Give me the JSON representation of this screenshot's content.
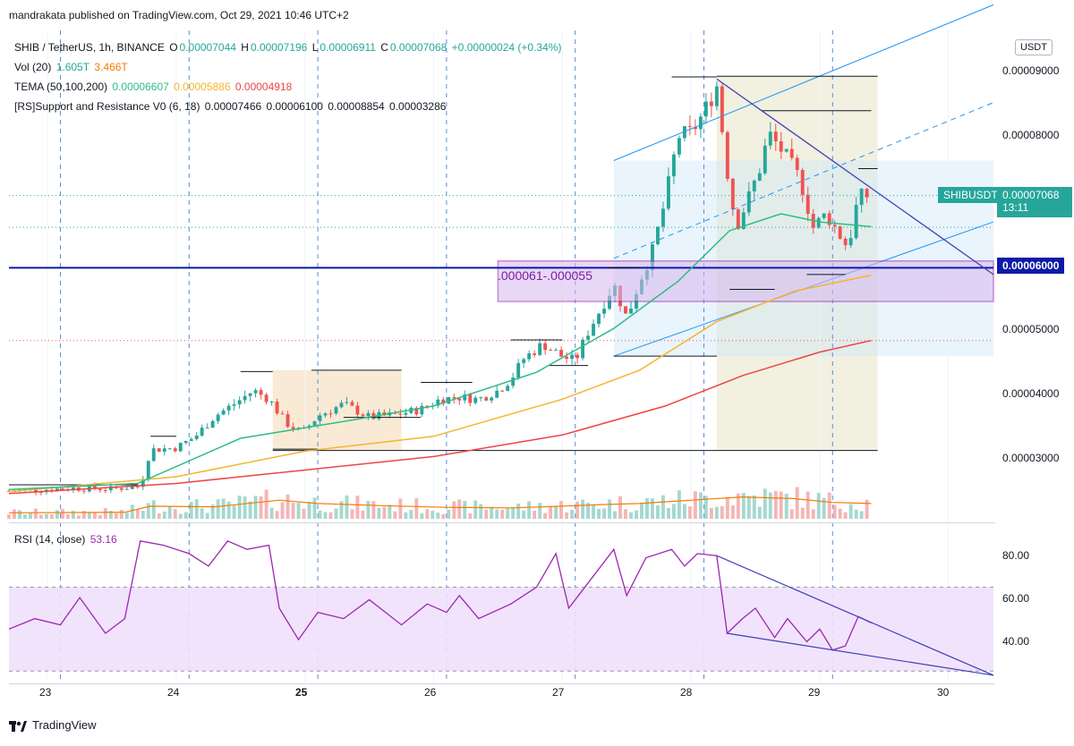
{
  "header": {
    "published": "mandrakata published on TradingView.com, Oct 29, 2021 10:46 UTC+2"
  },
  "legend": {
    "symbol_line": {
      "symbol": "SHIB / TetherUS, 1h, BINANCE",
      "o_label": "O",
      "o": "0.00007044",
      "h_label": "H",
      "h": "0.00007196",
      "l_label": "L",
      "l": "0.00006911",
      "c_label": "C",
      "c": "0.00007068",
      "change": "+0.00000024 (+0.34%)"
    },
    "vol_line": {
      "label": "Vol (20)",
      "v1": "1.605T",
      "v2": "3.466T"
    },
    "tema_line": {
      "label": "TEMA (50,100,200)",
      "v1": "0.00006607",
      "v2": "0.00005886",
      "v3": "0.00004918"
    },
    "sr_line": {
      "label": "[RS]Support and Resistance V0 (6, 18)",
      "v1": "0.00007466",
      "v2": "0.00006100",
      "v3": "0.00008854",
      "v4": "0.00003286"
    },
    "rsi_line": {
      "label": "RSI (14, close)",
      "value": "53.16"
    }
  },
  "price_scale": {
    "currency": "USDT",
    "ticks": [
      "0.00009000",
      "0.00008000",
      "0.00007000",
      "0.00006000",
      "0.00005000",
      "0.00004000",
      "0.00003000"
    ],
    "last_price_symbol": "SHIBUSDT",
    "last_price": "0.00007068",
    "countdown": "13:11",
    "hline_price": "0.00006000"
  },
  "rsi_scale": {
    "ticks": [
      "80.00",
      "60.00",
      "40.00"
    ]
  },
  "time_axis": {
    "ticks": [
      "23",
      "24",
      "25",
      "26",
      "27",
      "28",
      "29",
      "30"
    ]
  },
  "annotations": {
    "zone_label": ".000061-.000055"
  },
  "footer": {
    "brand": "TradingView"
  },
  "colors": {
    "up": "#26a69a",
    "down": "#ef5350",
    "tema50": "#2ebd85",
    "tema100": "#f5b52e",
    "tema200": "#ef4444",
    "hline": "#0d1aa6",
    "rsi": "#9c27b0",
    "zone": "#9c27b0",
    "channel": "#2196f3",
    "trendline": "#3f3fb5"
  },
  "chart_data": {
    "type": "candlestick",
    "symbol": "SHIB / TetherUS",
    "interval": "1h",
    "exchange": "BINANCE",
    "x_range_days": [
      22.7,
      30.35
    ],
    "y_range": [
      2.25e-05,
      9.52e-05
    ],
    "hline": 6e-05,
    "zone": [
      5.5e-05,
      6.1e-05
    ],
    "anchors": [
      [
        22.7,
        2.69e-05
      ],
      [
        23.2,
        2.73e-05
      ],
      [
        23.5,
        2.72e-05
      ],
      [
        23.72,
        2.76e-05
      ],
      [
        23.8,
        3.3e-05
      ],
      [
        24.0,
        3.33e-05
      ],
      [
        24.15,
        3.5e-05
      ],
      [
        24.3,
        3.8e-05
      ],
      [
        24.45,
        3.98e-05
      ],
      [
        24.6,
        4.18e-05
      ],
      [
        24.72,
        4.05e-05
      ],
      [
        24.85,
        3.7e-05
      ],
      [
        24.98,
        3.55e-05
      ],
      [
        25.1,
        3.8e-05
      ],
      [
        25.3,
        3.98e-05
      ],
      [
        25.5,
        3.78e-05
      ],
      [
        25.7,
        3.82e-05
      ],
      [
        25.9,
        3.9e-05
      ],
      [
        26.05,
        4.05e-05
      ],
      [
        26.2,
        4.08e-05
      ],
      [
        26.35,
        4.05e-05
      ],
      [
        26.5,
        4.18e-05
      ],
      [
        26.6,
        4.35e-05
      ],
      [
        26.7,
        4.65e-05
      ],
      [
        26.85,
        4.87e-05
      ],
      [
        27.0,
        4.68e-05
      ],
      [
        27.1,
        4.62e-05
      ],
      [
        27.2,
        5.05e-05
      ],
      [
        27.3,
        5.4e-05
      ],
      [
        27.4,
        5.75e-05
      ],
      [
        27.5,
        5.25e-05
      ],
      [
        27.6,
        5.8e-05
      ],
      [
        27.7,
        6.25e-05
      ],
      [
        27.8,
        7e-05
      ],
      [
        27.9,
        7.95e-05
      ],
      [
        28.0,
        8e-05
      ],
      [
        28.1,
        8.3e-05
      ],
      [
        28.2,
        8.7e-05
      ],
      [
        28.28,
        7.45e-05
      ],
      [
        28.35,
        6.6e-05
      ],
      [
        28.45,
        7.05e-05
      ],
      [
        28.55,
        7.55e-05
      ],
      [
        28.6,
        8e-05
      ],
      [
        28.72,
        7.7e-05
      ],
      [
        28.85,
        7.3e-05
      ],
      [
        28.95,
        6.6e-05
      ],
      [
        29.05,
        6.8e-05
      ],
      [
        29.15,
        6.5e-05
      ],
      [
        29.22,
        6.3e-05
      ],
      [
        29.3,
        7.05e-05
      ],
      [
        29.4,
        7.07e-05
      ]
    ],
    "tema50": [
      [
        22.7,
        2.71e-05
      ],
      [
        23.7,
        2.8e-05
      ],
      [
        24.5,
        3.47e-05
      ],
      [
        25.3,
        3.72e-05
      ],
      [
        26.0,
        3.95e-05
      ],
      [
        26.8,
        4.45e-05
      ],
      [
        27.4,
        5.1e-05
      ],
      [
        27.9,
        5.8e-05
      ],
      [
        28.3,
        6.55e-05
      ],
      [
        28.7,
        6.8e-05
      ],
      [
        29.0,
        6.68e-05
      ],
      [
        29.4,
        6.61e-05
      ]
    ],
    "tema100": [
      [
        22.7,
        2.68e-05
      ],
      [
        24.0,
        2.9e-05
      ],
      [
        25.0,
        3.28e-05
      ],
      [
        26.0,
        3.5e-05
      ],
      [
        27.0,
        4.05e-05
      ],
      [
        27.6,
        4.48e-05
      ],
      [
        28.2,
        5.2e-05
      ],
      [
        28.8,
        5.65e-05
      ],
      [
        29.4,
        5.89e-05
      ]
    ],
    "tema200": [
      [
        22.7,
        2.65e-05
      ],
      [
        24.0,
        2.8e-05
      ],
      [
        25.0,
        3e-05
      ],
      [
        26.0,
        3.2e-05
      ],
      [
        27.0,
        3.52e-05
      ],
      [
        27.8,
        3.95e-05
      ],
      [
        28.4,
        4.4e-05
      ],
      [
        29.0,
        4.75e-05
      ],
      [
        29.4,
        4.92e-05
      ]
    ],
    "support_lines": [
      [
        22.7,
        23.7,
        2.78e-05
      ],
      [
        23.8,
        24.0,
        3.5e-05
      ],
      [
        24.5,
        24.75,
        4.46e-05
      ],
      [
        24.75,
        25.1,
        3.31e-05
      ],
      [
        25.05,
        25.75,
        4.48e-05
      ],
      [
        25.3,
        25.9,
        3.78e-05
      ],
      [
        25.9,
        26.3,
        4.3e-05
      ],
      [
        26.6,
        27.0,
        4.93e-05
      ],
      [
        26.9,
        27.2,
        4.55e-05
      ],
      [
        27.35,
        27.6,
        6e-05
      ],
      [
        27.4,
        28.2,
        4.69e-05
      ],
      [
        27.85,
        28.2,
        8.83e-05
      ],
      [
        28.3,
        28.65,
        5.68e-05
      ],
      [
        28.55,
        29.4,
        8.33e-05
      ],
      [
        28.9,
        29.2,
        5.9e-05
      ],
      [
        29.3,
        29.45,
        7.47e-05
      ],
      [
        28.2,
        29.45,
        8.84e-05
      ],
      [
        24.75,
        29.45,
        3.29e-05
      ]
    ],
    "volume": {
      "vol_ma": [
        [
          22.7,
          1.1
        ],
        [
          23.6,
          1.2
        ],
        [
          23.8,
          2.3
        ],
        [
          24.3,
          2.2
        ],
        [
          24.8,
          3.4
        ],
        [
          25.1,
          2.8
        ],
        [
          25.6,
          2.4
        ],
        [
          26.1,
          2.1
        ],
        [
          26.6,
          2.0
        ],
        [
          27.0,
          2.3
        ],
        [
          27.3,
          2.6
        ],
        [
          27.6,
          2.8
        ],
        [
          28.0,
          3.4
        ],
        [
          28.4,
          4.0
        ],
        [
          28.8,
          3.7
        ],
        [
          29.1,
          3.0
        ],
        [
          29.4,
          2.8
        ]
      ],
      "y_max": 18
    },
    "rsi": {
      "series": [
        [
          22.7,
          50
        ],
        [
          22.9,
          55
        ],
        [
          23.1,
          52
        ],
        [
          23.25,
          65
        ],
        [
          23.45,
          48
        ],
        [
          23.6,
          55
        ],
        [
          23.72,
          92
        ],
        [
          23.9,
          90
        ],
        [
          24.1,
          86
        ],
        [
          24.25,
          80
        ],
        [
          24.4,
          92
        ],
        [
          24.55,
          88
        ],
        [
          24.72,
          90
        ],
        [
          24.8,
          60
        ],
        [
          24.95,
          45
        ],
        [
          25.1,
          58
        ],
        [
          25.3,
          55
        ],
        [
          25.5,
          64
        ],
        [
          25.75,
          52
        ],
        [
          25.95,
          62
        ],
        [
          26.1,
          58
        ],
        [
          26.2,
          66
        ],
        [
          26.35,
          55
        ],
        [
          26.6,
          62
        ],
        [
          26.8,
          70
        ],
        [
          26.95,
          86
        ],
        [
          27.05,
          60
        ],
        [
          27.2,
          72
        ],
        [
          27.4,
          88
        ],
        [
          27.5,
          66
        ],
        [
          27.65,
          84
        ],
        [
          27.85,
          88
        ],
        [
          27.95,
          80
        ],
        [
          28.05,
          86
        ],
        [
          28.2,
          85
        ],
        [
          28.28,
          48
        ],
        [
          28.4,
          55
        ],
        [
          28.5,
          60
        ],
        [
          28.65,
          46
        ],
        [
          28.75,
          55
        ],
        [
          28.9,
          44
        ],
        [
          29.0,
          50
        ],
        [
          29.1,
          40
        ],
        [
          29.2,
          42
        ],
        [
          29.3,
          56
        ],
        [
          29.4,
          53
        ]
      ],
      "band": [
        30,
        70
      ],
      "y_range": [
        25,
        100
      ]
    }
  }
}
